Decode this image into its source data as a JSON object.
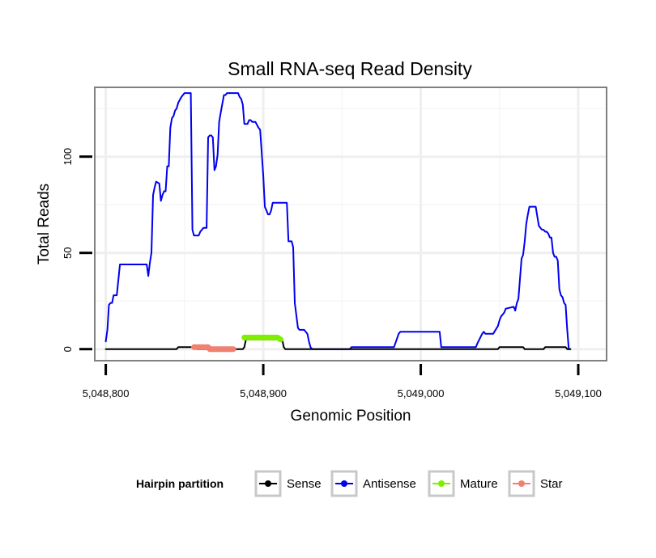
{
  "chart_data": {
    "type": "line",
    "title": "Small RNA-seq Read Density",
    "xlabel": "Genomic Position",
    "ylabel": "Total Reads",
    "xlim": [
      5048793,
      5049118
    ],
    "ylim": [
      -6,
      136
    ],
    "x_ticks": [
      {
        "value": 5048800,
        "label": "5,048,800"
      },
      {
        "value": 5048900,
        "label": "5,048,900"
      },
      {
        "value": 5049000,
        "label": "5,049,000"
      },
      {
        "value": 5049100,
        "label": "5,049,100"
      }
    ],
    "y_ticks": [
      {
        "value": 0,
        "label": "0"
      },
      {
        "value": 50,
        "label": "50"
      },
      {
        "value": 100,
        "label": "100"
      }
    ],
    "grid": true,
    "legend": {
      "title": "Hairpin partition",
      "position": "bottom",
      "entries": [
        "Sense",
        "Antisense",
        "Mature",
        "Star"
      ]
    },
    "series": [
      {
        "name": "Antisense",
        "color": "#0000ee",
        "stroke": 2,
        "points": [
          [
            5048800,
            4
          ],
          [
            5048801,
            10
          ],
          [
            5048802,
            23
          ],
          [
            5048803,
            24
          ],
          [
            5048804,
            24
          ],
          [
            5048805,
            28
          ],
          [
            5048807,
            28
          ],
          [
            5048809,
            44
          ],
          [
            5048826,
            44
          ],
          [
            5048827,
            38
          ],
          [
            5048828,
            45
          ],
          [
            5048829,
            50
          ],
          [
            5048830,
            80
          ],
          [
            5048831,
            84
          ],
          [
            5048832,
            87
          ],
          [
            5048834,
            86
          ],
          [
            5048835,
            77
          ],
          [
            5048836,
            80
          ],
          [
            5048837,
            82
          ],
          [
            5048838,
            82
          ],
          [
            5048839,
            95
          ],
          [
            5048840,
            95
          ],
          [
            5048841,
            115
          ],
          [
            5048842,
            120
          ],
          [
            5048843,
            121
          ],
          [
            5048844,
            124
          ],
          [
            5048845,
            125
          ],
          [
            5048846,
            128
          ],
          [
            5048848,
            131
          ],
          [
            5048850,
            133
          ],
          [
            5048854,
            133
          ],
          [
            5048855,
            62
          ],
          [
            5048856,
            59
          ],
          [
            5048859,
            59
          ],
          [
            5048860,
            61
          ],
          [
            5048862,
            63
          ],
          [
            5048864,
            63
          ],
          [
            5048865,
            110
          ],
          [
            5048866,
            111
          ],
          [
            5048867,
            111
          ],
          [
            5048868,
            110
          ],
          [
            5048869,
            93
          ],
          [
            5048870,
            95
          ],
          [
            5048871,
            101
          ],
          [
            5048872,
            118
          ],
          [
            5048873,
            123
          ],
          [
            5048875,
            132
          ],
          [
            5048876,
            132
          ],
          [
            5048877,
            133
          ],
          [
            5048883,
            133
          ],
          [
            5048884,
            133
          ],
          [
            5048885,
            131
          ],
          [
            5048886,
            130
          ],
          [
            5048887,
            127
          ],
          [
            5048888,
            117
          ],
          [
            5048890,
            117
          ],
          [
            5048891,
            119
          ],
          [
            5048892,
            119
          ],
          [
            5048893,
            118
          ],
          [
            5048895,
            118
          ],
          [
            5048897,
            115
          ],
          [
            5048898,
            114
          ],
          [
            5048900,
            90
          ],
          [
            5048901,
            74
          ],
          [
            5048902,
            72
          ],
          [
            5048903,
            70
          ],
          [
            5048904,
            70
          ],
          [
            5048905,
            72
          ],
          [
            5048906,
            76
          ],
          [
            5048908,
            76
          ],
          [
            5048915,
            76
          ],
          [
            5048916,
            56
          ],
          [
            5048917,
            56
          ],
          [
            5048918,
            56
          ],
          [
            5048919,
            53
          ],
          [
            5048920,
            24
          ],
          [
            5048922,
            11
          ],
          [
            5048923,
            10
          ],
          [
            5048924,
            10
          ],
          [
            5048926,
            10
          ],
          [
            5048928,
            8
          ],
          [
            5048929,
            4
          ],
          [
            5048930,
            1
          ],
          [
            5048931,
            0
          ],
          [
            5048955,
            0
          ],
          [
            5048956,
            1
          ],
          [
            5048983,
            1
          ],
          [
            5048986,
            8
          ],
          [
            5048987,
            9
          ],
          [
            5049012,
            9
          ],
          [
            5049013,
            1
          ],
          [
            5049035,
            1
          ],
          [
            5049036,
            3
          ],
          [
            5049039,
            8
          ],
          [
            5049040,
            9
          ],
          [
            5049041,
            8
          ],
          [
            5049046,
            8
          ],
          [
            5049049,
            12
          ],
          [
            5049050,
            15
          ],
          [
            5049051,
            17
          ],
          [
            5049052,
            18
          ],
          [
            5049053,
            19
          ],
          [
            5049054,
            21
          ],
          [
            5049059,
            22
          ],
          [
            5049060,
            20
          ],
          [
            5049061,
            24
          ],
          [
            5049062,
            26
          ],
          [
            5049064,
            47
          ],
          [
            5049065,
            49
          ],
          [
            5049066,
            56
          ],
          [
            5049067,
            65
          ],
          [
            5049068,
            70
          ],
          [
            5049069,
            74
          ],
          [
            5049073,
            74
          ],
          [
            5049074,
            69
          ],
          [
            5049075,
            64
          ],
          [
            5049076,
            63
          ],
          [
            5049077,
            62
          ],
          [
            5049078,
            62
          ],
          [
            5049079,
            61
          ],
          [
            5049080,
            61
          ],
          [
            5049081,
            60
          ],
          [
            5049082,
            58
          ],
          [
            5049083,
            58
          ],
          [
            5049084,
            50
          ],
          [
            5049085,
            48
          ],
          [
            5049086,
            48
          ],
          [
            5049087,
            46
          ],
          [
            5049088,
            31
          ],
          [
            5049089,
            28
          ],
          [
            5049090,
            27
          ],
          [
            5049091,
            24
          ],
          [
            5049092,
            23
          ],
          [
            5049093,
            10
          ],
          [
            5049094,
            0
          ],
          [
            5049095,
            0
          ]
        ]
      },
      {
        "name": "Sense",
        "color": "#000000",
        "stroke": 2,
        "points": [
          [
            5048800,
            0
          ],
          [
            5048845,
            0
          ],
          [
            5048846,
            1
          ],
          [
            5048856,
            1
          ],
          [
            5048858,
            0
          ],
          [
            5048887,
            0
          ],
          [
            5048888,
            1
          ],
          [
            5048889,
            5
          ],
          [
            5048912,
            5
          ],
          [
            5048913,
            1
          ],
          [
            5048914,
            0
          ],
          [
            5049049,
            0
          ],
          [
            5049050,
            1
          ],
          [
            5049065,
            1
          ],
          [
            5049066,
            0
          ],
          [
            5049078,
            0
          ],
          [
            5049079,
            1
          ],
          [
            5049092,
            1
          ],
          [
            5049093,
            0
          ],
          [
            5049095,
            0
          ]
        ]
      },
      {
        "name": "Mature",
        "color": "#80ee00",
        "stroke": 7,
        "points": [
          [
            5048888,
            6
          ],
          [
            5048894,
            6
          ],
          [
            5048895,
            6
          ],
          [
            5048908,
            6
          ],
          [
            5048909,
            6
          ],
          [
            5048911,
            5
          ]
        ]
      },
      {
        "name": "Star",
        "color": "#f08070",
        "stroke": 7,
        "points": [
          [
            5048856,
            1
          ],
          [
            5048865,
            1
          ],
          [
            5048866,
            0
          ],
          [
            5048870,
            0
          ],
          [
            5048872,
            0
          ],
          [
            5048881,
            0
          ]
        ]
      }
    ]
  }
}
